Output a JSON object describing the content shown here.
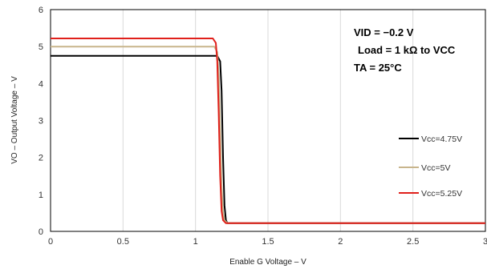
{
  "chart_data": {
    "type": "line",
    "title": "",
    "xlabel": "Enable G Voltage – V",
    "ylabel": "VO – Output Voltage – V",
    "xlim": [
      0,
      3
    ],
    "ylim": [
      0,
      6
    ],
    "xticks": [
      "0",
      "0.5",
      "1",
      "1.5",
      "2",
      "2.5",
      "3"
    ],
    "yticks": [
      "0",
      "1",
      "2",
      "3",
      "4",
      "5",
      "6"
    ],
    "grid": "vertical",
    "legend_position": "right",
    "annotations": [
      "VID = −0.2 V",
      "Load = 1 kΩ to VCC",
      "TA = 25°C"
    ],
    "series": [
      {
        "name": "Vcc=4.75V",
        "color": "#000000",
        "x": [
          0,
          1.15,
          1.17,
          1.18,
          1.19,
          1.2,
          1.21,
          1.22,
          3
        ],
        "y": [
          4.75,
          4.75,
          4.6,
          3.8,
          2.0,
          0.7,
          0.3,
          0.22,
          0.22
        ]
      },
      {
        "name": "Vcc=5V",
        "color": "#c8b58c",
        "x": [
          0,
          1.13,
          1.15,
          1.16,
          1.17,
          1.18,
          1.19,
          1.2,
          1.22,
          3
        ],
        "y": [
          5.0,
          5.0,
          4.85,
          4.2,
          2.8,
          1.2,
          0.5,
          0.3,
          0.22,
          0.22
        ]
      },
      {
        "name": "Vcc=5.25V",
        "color": "#e0201b",
        "x": [
          0,
          1.12,
          1.14,
          1.15,
          1.16,
          1.17,
          1.18,
          1.19,
          1.21,
          3
        ],
        "y": [
          5.22,
          5.22,
          5.1,
          4.6,
          3.2,
          1.5,
          0.55,
          0.3,
          0.22,
          0.22
        ]
      }
    ]
  }
}
